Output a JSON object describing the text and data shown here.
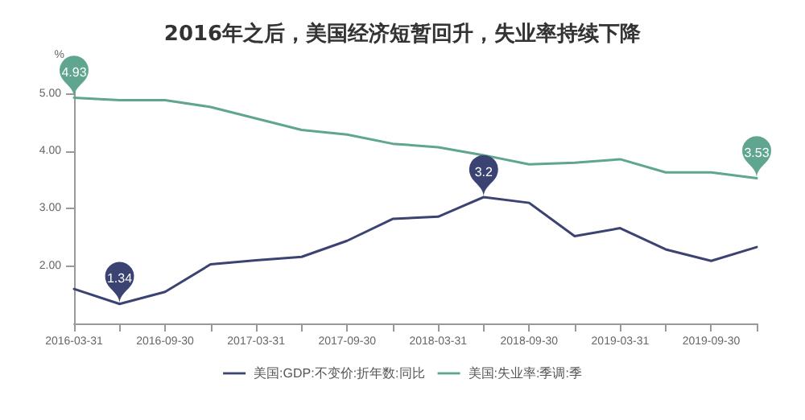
{
  "chart_data": {
    "type": "line",
    "title": "2016年之后，美国经济短暂回升，失业率持续下降",
    "ylabel": "%",
    "categories": [
      "2016-03-31",
      null,
      "2016-09-30",
      null,
      "2017-03-31",
      null,
      "2017-09-30",
      null,
      "2018-03-31",
      null,
      "2018-09-30",
      null,
      "2019-03-31",
      null,
      "2019-09-30",
      null
    ],
    "series": [
      {
        "name": "美国:GDP:不变价:折年数:同比",
        "color": "#3b4373",
        "values": [
          1.6,
          1.34,
          1.55,
          2.03,
          2.1,
          2.16,
          2.44,
          2.82,
          2.86,
          3.2,
          3.1,
          2.52,
          2.66,
          2.29,
          2.09,
          2.33
        ],
        "value_labels": [
          null,
          "1.34",
          null,
          null,
          null,
          null,
          null,
          null,
          null,
          "3.2",
          null,
          null,
          null,
          null,
          null,
          null
        ]
      },
      {
        "name": "美国:失业率:季调:季",
        "color": "#5fa58f",
        "values": [
          4.93,
          4.89,
          4.89,
          4.77,
          4.57,
          4.37,
          4.29,
          4.13,
          4.07,
          3.93,
          3.77,
          3.8,
          3.86,
          3.63,
          3.63,
          3.53
        ],
        "value_labels": [
          "4.93",
          null,
          null,
          null,
          null,
          null,
          null,
          null,
          null,
          null,
          null,
          null,
          null,
          null,
          null,
          "3.53"
        ]
      }
    ],
    "ylim": [
      1,
      5.4
    ],
    "yticks": [
      {
        "value": 2,
        "label": "2.00"
      },
      {
        "value": 3,
        "label": "3.00"
      },
      {
        "value": 4,
        "label": "4.00"
      },
      {
        "value": 5,
        "label": "5.00"
      }
    ],
    "grid": false,
    "legend": "bottom",
    "marker": "none",
    "line_style": "solid"
  }
}
